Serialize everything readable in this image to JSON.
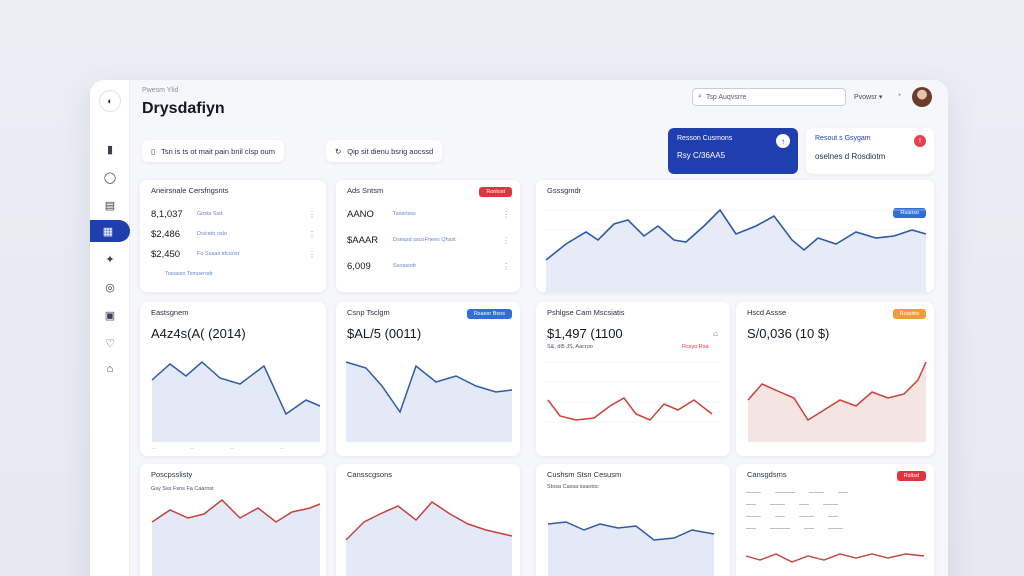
{
  "header": {
    "small_label": "Pwesm Ylid",
    "brand_title": "Drysdafiyn",
    "search_placeholder": "Tsp Auqvsrre",
    "user_menu_label": "Pvowsr ▾"
  },
  "sidebar": {
    "items": [
      {
        "icon": "clipboard-icon",
        "glyph": "▮",
        "active": false
      },
      {
        "icon": "chat-icon",
        "glyph": "◯",
        "active": false
      },
      {
        "icon": "document-icon",
        "glyph": "▤",
        "active": false
      },
      {
        "icon": "dashboard-icon",
        "glyph": "▦",
        "active": true
      },
      {
        "icon": "puzzle-icon",
        "glyph": "✦",
        "active": false
      },
      {
        "icon": "globe-icon",
        "glyph": "◎",
        "active": false
      },
      {
        "icon": "calendar-icon",
        "glyph": "▣",
        "active": false
      },
      {
        "icon": "message-icon",
        "glyph": "♡",
        "active": false
      },
      {
        "icon": "home-icon",
        "glyph": "⌂",
        "active": false
      }
    ]
  },
  "chips": [
    {
      "icon": "list-icon",
      "label": "Tsn is ts ot mait pain bnil clsp oum"
    },
    {
      "icon": "refresh-icon",
      "label": "Qip sit dienu bsrig aocssd"
    }
  ],
  "promo": {
    "title": "Resson Cusmons",
    "value": "Rsy C/36AA5"
  },
  "promo2": {
    "title": "Resout s Gsygam",
    "value": "oselnes d Rosdiotm"
  },
  "cards": {
    "stats_left": {
      "title": "Aneirsnale Cersfngsnts",
      "rows": [
        {
          "value": "8,1,037",
          "sub": "Gosts Ssd"
        },
        {
          "value": "$2,486",
          "sub": "Dsiceto oslo"
        },
        {
          "value": "$2,450",
          "sub": "Fo Ssaas idcoosr"
        },
        {
          "value": "",
          "sub": "Toeasso Tsmoerodr"
        }
      ]
    },
    "stats_mid": {
      "title": "Ads Sntsm",
      "badge": "Ronlost",
      "rows": [
        {
          "value": "AANO",
          "sub": "Tsosrtsss"
        },
        {
          "value": "$AAAR",
          "sub": "Dseasd sscoFnees Qhsst"
        },
        {
          "value": "6,009",
          "sub": "Ssoasodr"
        }
      ]
    },
    "top_chart": {
      "title": "Gsssgmdr",
      "badge": "Rsaoso"
    },
    "row2": [
      {
        "title": "Eastsgnem",
        "value": "A4z4s(A( (2014)",
        "badge": ""
      },
      {
        "title": "Csnp Tsclgm",
        "value": "$AL/5 (0011)",
        "badge": "Rsaesr Bsos"
      },
      {
        "title": "Pshlgse Cam Mscsiatis",
        "value": "$1,497 (1100",
        "badge": "",
        "sub1": "S&, dl5 JS, Aacroo",
        "sub2": "Rcsyo Rsa"
      },
      {
        "title": "Hscd Assse",
        "value": "S/0,036 (10 $)",
        "badge": "Roaotrs"
      }
    ],
    "row3": [
      {
        "title": "Poscpsslisty",
        "sub": "Gsy Sss Fsns Fa Caarnst",
        "badge": ""
      },
      {
        "title": "Cansscgsons",
        "sub": "",
        "badge": ""
      },
      {
        "title": "Cushsm Stsn Cesusm",
        "sub": "Stosa Cassa ssaotoc",
        "badge": ""
      },
      {
        "title": "Cansgdsms",
        "sub": "",
        "badge": "Rsltsd"
      }
    ]
  },
  "colors": {
    "accent": "#1f3fae",
    "series_blue": "#2f5aa8",
    "series_red": "#c8423d",
    "badge_red": "#e0353d",
    "badge_blue": "#2f6fd6",
    "badge_orange": "#ef9d3a"
  }
}
